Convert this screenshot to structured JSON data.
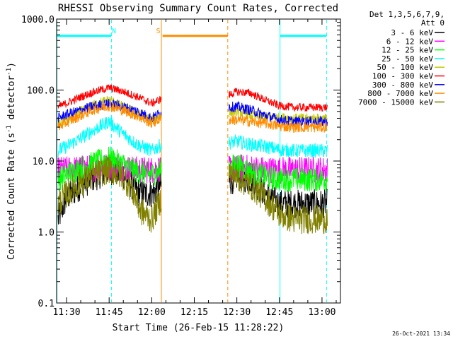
{
  "chart_data": {
    "type": "line",
    "title": "RHESSI Observing Summary Count Rates, Corrected",
    "xlabel": "Start Time (26-Feb-15 11:28:22)",
    "ylabel": "Corrected Count Rate (s^-1 detector^-1)",
    "ylabel_main": "Corrected Count Rate (s",
    "ylabel_sup1": "-1",
    "ylabel_mid": " detector",
    "ylabel_sup2": "-1",
    "ylabel_end": ")",
    "y_scale": "log",
    "ylim": [
      0.1,
      1000
    ],
    "xlim_minutes": [
      686.5,
      786.5
    ],
    "x_ticks": [
      {
        "minute": 690,
        "label": "11:30"
      },
      {
        "minute": 705,
        "label": "11:45"
      },
      {
        "minute": 720,
        "label": "12:00"
      },
      {
        "minute": 735,
        "label": "12:15"
      },
      {
        "minute": 750,
        "label": "12:30"
      },
      {
        "minute": 765,
        "label": "12:45"
      },
      {
        "minute": 780,
        "label": "13:00"
      }
    ],
    "y_ticks": [
      {
        "value": 0.1,
        "label": "0.1"
      },
      {
        "value": 1,
        "label": "1.0"
      },
      {
        "value": 10,
        "label": "10.0"
      },
      {
        "value": 100,
        "label": "100.0"
      },
      {
        "value": 1000,
        "label": "1000.0"
      }
    ],
    "legend_header": [
      "Det 1,3,5,6,7,9,",
      "Att 0"
    ],
    "data_gap_minutes": [
      723.5,
      747.0
    ],
    "series": [
      {
        "name": "3 - 6 keV",
        "color": "#000000",
        "values_first": [
          [
            687.0,
            1.5
          ],
          [
            690,
            3.0
          ],
          [
            695,
            4.5
          ],
          [
            700,
            6.0
          ],
          [
            705,
            7.5
          ],
          [
            710,
            6.5
          ],
          [
            713,
            4.5
          ],
          [
            716,
            3.5
          ],
          [
            720,
            3.5
          ],
          [
            723.4,
            4.5
          ]
        ],
        "values_second": [
          [
            747.2,
            5.0
          ],
          [
            750,
            6.0
          ],
          [
            755,
            5.5
          ],
          [
            760,
            3.5
          ],
          [
            765,
            2.5
          ],
          [
            770,
            2.5
          ],
          [
            775,
            2.5
          ],
          [
            782,
            2.5
          ]
        ]
      },
      {
        "name": "6 - 12 keV",
        "color": "#ff00ff",
        "values_first": [
          [
            687.0,
            7.5
          ],
          [
            690,
            7.5
          ],
          [
            695,
            7.8
          ],
          [
            700,
            8.0
          ],
          [
            705,
            8.5
          ],
          [
            710,
            8.0
          ],
          [
            715,
            7.5
          ],
          [
            720,
            7.5
          ],
          [
            723.4,
            8.0
          ]
        ],
        "values_second": [
          [
            747.2,
            7.5
          ],
          [
            750,
            8.0
          ],
          [
            755,
            8.0
          ],
          [
            760,
            7.5
          ],
          [
            765,
            7.5
          ],
          [
            770,
            7.5
          ],
          [
            775,
            7.5
          ],
          [
            782,
            7.5
          ]
        ]
      },
      {
        "name": "12 - 25 keV",
        "color": "#00ff00",
        "values_first": [
          [
            687.0,
            5.5
          ],
          [
            690,
            6.5
          ],
          [
            695,
            8.0
          ],
          [
            700,
            9.5
          ],
          [
            705,
            11.0
          ],
          [
            710,
            9.0
          ],
          [
            715,
            7.0
          ],
          [
            720,
            6.5
          ],
          [
            723.4,
            7.5
          ]
        ],
        "values_second": [
          [
            747.2,
            8.0
          ],
          [
            750,
            9.0
          ],
          [
            755,
            7.0
          ],
          [
            760,
            6.0
          ],
          [
            765,
            5.5
          ],
          [
            770,
            5.5
          ],
          [
            775,
            5.5
          ],
          [
            782,
            5.5
          ]
        ]
      },
      {
        "name": "25 - 50 keV",
        "color": "#00ffff",
        "values_first": [
          [
            687.0,
            14.0
          ],
          [
            690,
            16.0
          ],
          [
            695,
            21.0
          ],
          [
            700,
            28.0
          ],
          [
            705,
            36.0
          ],
          [
            710,
            24.0
          ],
          [
            715,
            17.0
          ],
          [
            720,
            14.0
          ],
          [
            723.4,
            17.0
          ]
        ],
        "values_second": [
          [
            747.2,
            18.0
          ],
          [
            750,
            19.0
          ],
          [
            755,
            17.0
          ],
          [
            760,
            16.0
          ],
          [
            765,
            14.5
          ],
          [
            770,
            14.0
          ],
          [
            775,
            14.0
          ],
          [
            782,
            14.0
          ]
        ]
      },
      {
        "name": "50 - 100 keV",
        "color": "#c8c800",
        "values_first": [
          [
            687.0,
            33.0
          ],
          [
            690,
            38.0
          ],
          [
            695,
            50.0
          ],
          [
            700,
            63.0
          ],
          [
            705,
            73.0
          ],
          [
            710,
            58.0
          ],
          [
            715,
            46.0
          ],
          [
            720,
            38.0
          ],
          [
            723.4,
            44.0
          ]
        ],
        "values_second": [
          [
            747.2,
            48.0
          ],
          [
            750,
            50.0
          ],
          [
            755,
            44.0
          ],
          [
            760,
            42.0
          ],
          [
            765,
            41.0
          ],
          [
            770,
            40.0
          ],
          [
            775,
            40.0
          ],
          [
            782,
            40.0
          ]
        ]
      },
      {
        "name": "100 - 300 keV",
        "color": "#ff0000",
        "values_first": [
          [
            687.0,
            58.0
          ],
          [
            690,
            65.0
          ],
          [
            695,
            80.0
          ],
          [
            700,
            95.0
          ],
          [
            705,
            108.0
          ],
          [
            710,
            95.0
          ],
          [
            715,
            80.0
          ],
          [
            720,
            65.0
          ],
          [
            723.4,
            75.0
          ]
        ],
        "values_second": [
          [
            747.2,
            85.0
          ],
          [
            750,
            95.0
          ],
          [
            755,
            90.0
          ],
          [
            760,
            72.0
          ],
          [
            765,
            60.0
          ],
          [
            770,
            57.0
          ],
          [
            775,
            57.0
          ],
          [
            782,
            57.0
          ]
        ]
      },
      {
        "name": "300 - 800 keV",
        "color": "#0000ff",
        "values_first": [
          [
            687.0,
            40.0
          ],
          [
            690,
            45.0
          ],
          [
            695,
            52.0
          ],
          [
            700,
            60.0
          ],
          [
            705,
            64.0
          ],
          [
            710,
            58.0
          ],
          [
            715,
            50.0
          ],
          [
            720,
            40.0
          ],
          [
            723.4,
            48.0
          ]
        ],
        "values_second": [
          [
            747.2,
            58.0
          ],
          [
            750,
            58.0
          ],
          [
            755,
            52.0
          ],
          [
            760,
            44.0
          ],
          [
            765,
            38.0
          ],
          [
            770,
            36.0
          ],
          [
            775,
            36.0
          ],
          [
            782,
            36.0
          ]
        ]
      },
      {
        "name": "800 - 7000 keV",
        "color": "#ff8c00",
        "values_first": [
          [
            687.0,
            30.0
          ],
          [
            690,
            35.0
          ],
          [
            695,
            44.0
          ],
          [
            700,
            54.0
          ],
          [
            705,
            60.0
          ],
          [
            710,
            52.0
          ],
          [
            715,
            43.0
          ],
          [
            720,
            34.0
          ],
          [
            723.4,
            40.0
          ]
        ],
        "values_second": [
          [
            747.2,
            38.0
          ],
          [
            750,
            38.0
          ],
          [
            755,
            36.0
          ],
          [
            760,
            34.0
          ],
          [
            765,
            31.0
          ],
          [
            770,
            30.0
          ],
          [
            775,
            30.0
          ],
          [
            782,
            30.0
          ]
        ]
      },
      {
        "name": "7000 - 15000 keV",
        "color": "#808000",
        "values_first": [
          [
            687.0,
            2.5
          ],
          [
            690,
            3.5
          ],
          [
            695,
            5.0
          ],
          [
            700,
            6.5
          ],
          [
            705,
            7.5
          ],
          [
            710,
            6.0
          ],
          [
            713,
            4.0
          ],
          [
            716,
            2.0
          ],
          [
            720,
            1.5
          ],
          [
            723.4,
            3.0
          ]
        ],
        "values_second": [
          [
            747.2,
            7.0
          ],
          [
            750,
            6.0
          ],
          [
            755,
            4.5
          ],
          [
            760,
            3.0
          ],
          [
            765,
            1.8
          ],
          [
            770,
            1.5
          ],
          [
            775,
            1.5
          ],
          [
            782,
            1.5
          ]
        ]
      }
    ],
    "vertical_markers": [
      {
        "minute": 686.6,
        "color": "#00ffff",
        "style": "solid"
      },
      {
        "minute": 705.8,
        "color": "#00ffff",
        "style": "dashed"
      },
      {
        "minute": 723.4,
        "color": "#ff8c00",
        "style": "solid"
      },
      {
        "minute": 746.8,
        "color": "#ff8c00",
        "style": "dashed"
      },
      {
        "minute": 765.2,
        "color": "#00ffff",
        "style": "solid"
      },
      {
        "minute": 781.6,
        "color": "#00ffff",
        "style": "dashed"
      }
    ],
    "bars": [
      {
        "start": 686.6,
        "end": 705.8,
        "color": "#00ffff",
        "label": "N",
        "label_minute": 706.7
      },
      {
        "start": 723.8,
        "end": 746.8,
        "color": "#ff8c00",
        "label": "S",
        "label_minute": 722.3
      },
      {
        "start": 765.2,
        "end": 781.6,
        "color": "#00ffff",
        "label": "",
        "label_minute": 0
      }
    ],
    "bar_value": 580,
    "footer_timestamp": "26-Oct-2021 13:34"
  }
}
